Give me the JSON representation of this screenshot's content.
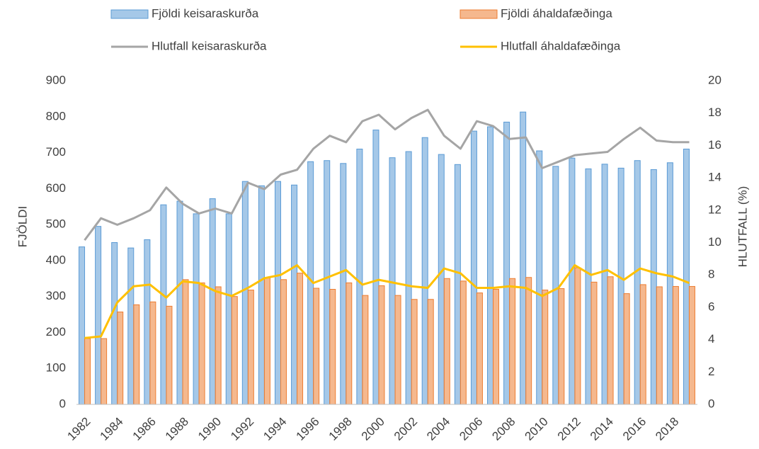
{
  "chart_data": {
    "type": "bar-line",
    "y_label": "FJÖLDI",
    "y2_label": "HLUTFALL (%)",
    "categories": [
      "1982",
      null,
      "1984",
      null,
      "1986",
      null,
      "1988",
      null,
      "1990",
      null,
      "1992",
      null,
      "1994",
      null,
      "1996",
      null,
      "1998",
      null,
      "2000",
      null,
      "2002",
      null,
      "2004",
      null,
      "2006",
      null,
      "2008",
      null,
      "2010",
      null,
      "2012",
      null,
      "2014",
      null,
      "2016",
      null,
      "2018",
      null
    ],
    "series": [
      {
        "name": "Fjöldi keisaraskurða",
        "type": "bar",
        "color": "#5b9bd5",
        "values": [
          438,
          495,
          450,
          435,
          458,
          555,
          565,
          530,
          572,
          530,
          620,
          608,
          620,
          610,
          675,
          678,
          670,
          710,
          763,
          686,
          703,
          742,
          695,
          667,
          760,
          772,
          785,
          813,
          705,
          662,
          685,
          655,
          668,
          657,
          678,
          653,
          672,
          710
        ]
      },
      {
        "name": "Fjöldi áhaldafæðinga",
        "type": "bar",
        "color": "#ed7d31",
        "values": [
          183,
          183,
          257,
          277,
          285,
          273,
          347,
          338,
          327,
          300,
          318,
          352,
          347,
          365,
          323,
          320,
          338,
          303,
          330,
          303,
          292,
          292,
          350,
          343,
          310,
          320,
          350,
          353,
          318,
          322,
          380,
          340,
          355,
          308,
          333,
          327,
          328,
          328
        ]
      },
      {
        "name": "Hlutfall keisaraskurða",
        "type": "line",
        "axis": "y2",
        "color": "#a5a5a5",
        "values": [
          10.15,
          11.5,
          11.1,
          11.5,
          12.0,
          13.4,
          12.4,
          11.8,
          12.1,
          11.8,
          13.7,
          13.3,
          14.2,
          14.5,
          15.8,
          16.6,
          16.2,
          17.5,
          17.9,
          17.0,
          17.7,
          18.2,
          16.6,
          15.8,
          17.5,
          17.2,
          16.4,
          16.5,
          14.6,
          15.0,
          15.4,
          15.5,
          15.6,
          16.4,
          17.1,
          16.3,
          16.2,
          16.2
        ]
      },
      {
        "name": "Hlutfall áhaldafæðinga",
        "type": "line",
        "axis": "y2",
        "color": "#ffc000",
        "values": [
          4.1,
          4.2,
          6.3,
          7.3,
          7.4,
          6.6,
          7.6,
          7.5,
          7.0,
          6.7,
          7.2,
          7.8,
          8.0,
          8.6,
          7.5,
          7.9,
          8.3,
          7.4,
          7.7,
          7.5,
          7.3,
          7.2,
          8.4,
          8.1,
          7.2,
          7.2,
          7.3,
          7.2,
          6.7,
          7.2,
          8.6,
          8.0,
          8.3,
          7.7,
          8.4,
          8.1,
          7.9,
          7.5
        ]
      }
    ],
    "ylim": [
      0,
      900
    ],
    "yticks": [
      0,
      100,
      200,
      300,
      400,
      500,
      600,
      700,
      800,
      900
    ],
    "y2lim": [
      0,
      20
    ],
    "y2ticks": [
      0,
      2,
      4,
      6,
      8,
      10,
      12,
      14,
      16,
      18,
      20
    ],
    "grid": false
  }
}
